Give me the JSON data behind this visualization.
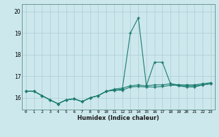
{
  "title": "",
  "xlabel": "Humidex (Indice chaleur)",
  "ylabel": "",
  "bg_color": "#cce8ec",
  "line_color": "#1a7a6e",
  "grid_color": "#b0d0d8",
  "xlim": [
    -0.5,
    23.5
  ],
  "ylim": [
    15.45,
    20.35
  ],
  "yticks": [
    16,
    17,
    18,
    19,
    20
  ],
  "xticks": [
    0,
    1,
    2,
    3,
    4,
    5,
    6,
    7,
    8,
    9,
    10,
    11,
    12,
    13,
    14,
    15,
    16,
    17,
    18,
    19,
    20,
    21,
    22,
    23
  ],
  "series": [
    {
      "x": [
        0,
        1,
        2,
        3,
        4,
        5,
        6,
        7,
        8,
        9,
        10,
        11,
        12,
        13,
        14,
        15,
        16,
        17,
        18,
        19,
        20,
        21,
        22,
        23
      ],
      "y": [
        16.3,
        16.3,
        16.1,
        15.9,
        15.72,
        15.9,
        15.95,
        15.82,
        16.0,
        16.1,
        16.3,
        16.35,
        16.4,
        19.0,
        19.72,
        16.55,
        17.65,
        17.65,
        16.65,
        16.55,
        16.5,
        16.5,
        16.6,
        16.65
      ]
    },
    {
      "x": [
        0,
        1,
        2,
        3,
        4,
        5,
        6,
        7,
        8,
        9,
        10,
        11,
        12,
        13,
        14,
        15,
        16,
        17,
        18,
        19,
        20,
        21,
        22,
        23
      ],
      "y": [
        16.3,
        16.3,
        16.1,
        15.9,
        15.72,
        15.9,
        15.95,
        15.82,
        16.0,
        16.1,
        16.3,
        16.35,
        16.35,
        16.5,
        16.52,
        16.5,
        16.5,
        16.52,
        16.58,
        16.58,
        16.55,
        16.55,
        16.6,
        16.65
      ]
    },
    {
      "x": [
        0,
        1,
        2,
        3,
        4,
        5,
        6,
        7,
        8,
        9,
        10,
        11,
        12,
        13,
        14,
        15,
        16,
        17,
        18,
        19,
        20,
        21,
        22,
        23
      ],
      "y": [
        16.3,
        16.3,
        16.1,
        15.9,
        15.72,
        15.9,
        15.95,
        15.82,
        16.0,
        16.1,
        16.3,
        16.4,
        16.45,
        16.55,
        16.6,
        16.55,
        16.6,
        16.6,
        16.65,
        16.6,
        16.6,
        16.6,
        16.65,
        16.7
      ]
    }
  ]
}
